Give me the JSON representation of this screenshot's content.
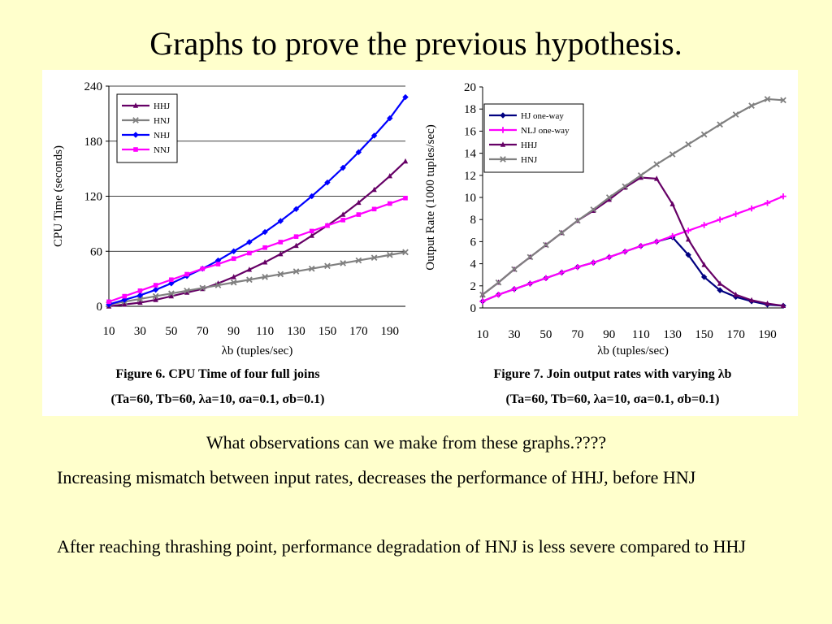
{
  "slide": {
    "title": "Graphs to prove the previous hypothesis.",
    "question": "What observations can we make from these graphs.????",
    "observations": [
      "Increasing mismatch between input rates, decreases the performance of HHJ, before HNJ",
      "After reaching thrashing point, performance degradation of HNJ is less severe compared to HHJ"
    ]
  },
  "chart_data": [
    {
      "type": "line",
      "ylabel": "CPU Time (seconds)",
      "xlabel": "λb (tuples/sec)",
      "xticks": [
        10,
        30,
        50,
        70,
        90,
        110,
        130,
        150,
        170,
        190
      ],
      "yticks": [
        0,
        60,
        120,
        180,
        240
      ],
      "xlim": [
        10,
        200
      ],
      "ylim": [
        0,
        240
      ],
      "grid": true,
      "legend_position": "top-left",
      "x": [
        10,
        20,
        30,
        40,
        50,
        60,
        70,
        80,
        90,
        100,
        110,
        120,
        130,
        140,
        150,
        160,
        170,
        180,
        190,
        200
      ],
      "series": [
        {
          "name": "HHJ",
          "color": "#660066",
          "marker": "triangle",
          "values": [
            0,
            2,
            4,
            7,
            11,
            15,
            19,
            25,
            32,
            40,
            48,
            57,
            66,
            77,
            88,
            100,
            113,
            127,
            142,
            158
          ]
        },
        {
          "name": "HNJ",
          "color": "#808080",
          "marker": "x",
          "values": [
            2,
            5,
            8,
            11,
            14,
            17,
            20,
            23,
            26,
            29,
            32,
            35,
            38,
            41,
            44,
            47,
            50,
            53,
            56,
            59
          ]
        },
        {
          "name": "NHJ",
          "color": "#0000ff",
          "marker": "diamond",
          "values": [
            2,
            7,
            12,
            18,
            25,
            33,
            41,
            50,
            60,
            70,
            81,
            93,
            106,
            120,
            135,
            151,
            168,
            186,
            205,
            228
          ]
        },
        {
          "name": "NNJ",
          "color": "#ff00ff",
          "marker": "square",
          "values": [
            5,
            11,
            17,
            23,
            29,
            35,
            41,
            46,
            52,
            58,
            64,
            70,
            76,
            82,
            88,
            94,
            100,
            106,
            112,
            118
          ]
        }
      ],
      "caption_line1": "Figure 6. CPU Time of four full joins",
      "caption_line2": "(Ta=60, Tb=60, λa=10, σa=0.1, σb=0.1)"
    },
    {
      "type": "line",
      "ylabel": "Output Rate (1000 tuples/sec)",
      "xlabel": "λb (tuples/sec)",
      "xticks": [
        10,
        30,
        50,
        70,
        90,
        110,
        130,
        150,
        170,
        190
      ],
      "yticks": [
        0,
        2,
        4,
        6,
        8,
        10,
        12,
        14,
        16,
        18,
        20
      ],
      "xlim": [
        10,
        200
      ],
      "ylim": [
        0,
        20
      ],
      "grid": false,
      "legend_position": "top-left",
      "x": [
        10,
        20,
        30,
        40,
        50,
        60,
        70,
        80,
        90,
        100,
        110,
        120,
        130,
        140,
        150,
        160,
        170,
        180,
        190,
        200
      ],
      "series": [
        {
          "name": "HJ  one-way",
          "color": "#000080",
          "marker": "diamond",
          "values": [
            0.6,
            1.2,
            1.7,
            2.2,
            2.7,
            3.2,
            3.7,
            4.1,
            4.6,
            5.1,
            5.6,
            6.0,
            6.4,
            4.8,
            2.8,
            1.6,
            1.0,
            0.6,
            0.3,
            0.2
          ]
        },
        {
          "name": "NLJ  one-way",
          "color": "#ff00ff",
          "marker": "cross",
          "values": [
            0.6,
            1.2,
            1.7,
            2.2,
            2.7,
            3.2,
            3.7,
            4.1,
            4.6,
            5.1,
            5.6,
            6.0,
            6.5,
            7.0,
            7.5,
            8.0,
            8.5,
            9.0,
            9.5,
            10.1
          ]
        },
        {
          "name": "HHJ",
          "color": "#660066",
          "marker": "triangle",
          "values": [
            1.2,
            2.3,
            3.5,
            4.6,
            5.7,
            6.8,
            7.9,
            8.8,
            9.8,
            10.9,
            11.8,
            11.7,
            9.4,
            6.2,
            3.9,
            2.2,
            1.2,
            0.7,
            0.4,
            0.2
          ]
        },
        {
          "name": "HNJ",
          "color": "#808080",
          "marker": "x",
          "values": [
            1.2,
            2.3,
            3.5,
            4.6,
            5.7,
            6.8,
            7.9,
            8.9,
            10.0,
            11.0,
            12.0,
            13.0,
            13.9,
            14.8,
            15.7,
            16.6,
            17.5,
            18.3,
            18.9,
            18.8
          ]
        }
      ],
      "caption_line1": "Figure 7. Join output rates with varying λb",
      "caption_line2": "(Ta=60, Tb=60, λa=10, σa=0.1, σb=0.1)"
    }
  ]
}
